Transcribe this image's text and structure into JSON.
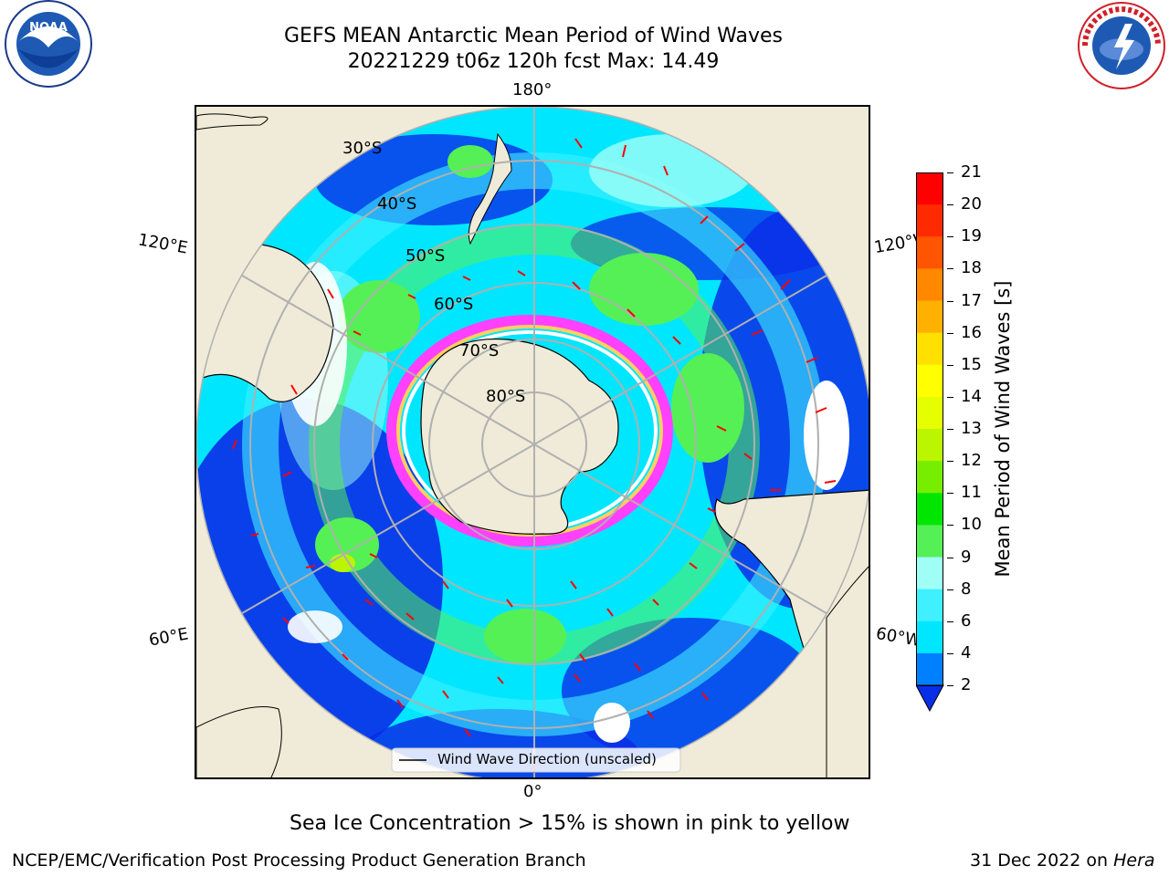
{
  "title": {
    "line1": "GEFS MEAN Antarctic Mean Period of Wind Waves",
    "line2": "20221229 t06z 120h fcst   Max: 14.49"
  },
  "logos": {
    "left": {
      "name": "noaa-logo",
      "text": "NOAA"
    },
    "right": {
      "name": "national-weather-service-logo",
      "text": "NATIONAL WEATHER SERVICE"
    }
  },
  "map": {
    "projection": "south-polar-stereographic",
    "longitude_labels": {
      "top": "180°",
      "left_upper": "120°E",
      "right_upper": "120°W",
      "left_lower": "60°E",
      "right_lower": "60°W",
      "bottom": "0°"
    },
    "latitude_labels": [
      "30°S",
      "40°S",
      "50°S",
      "60°S",
      "70°S",
      "80°S"
    ],
    "legend_label": "Wind Wave Direction (unscaled)",
    "colors": {
      "land": "#efebd8",
      "ocean_deep": "#0a2de8",
      "ocean_mid": "#00e6ff",
      "ocean_light": "#9ffff6",
      "green": "#55f055",
      "ice": "#ff40ff",
      "arrow": "#ff0000"
    }
  },
  "colorbar": {
    "label": "Mean Period of Wind Waves [s]",
    "ticks": [
      "2",
      "4",
      "6",
      "8",
      "9",
      "10",
      "11",
      "12",
      "13",
      "14",
      "15",
      "16",
      "17",
      "18",
      "19",
      "20",
      "21"
    ],
    "colors": [
      "#0a2de8",
      "#0080ff",
      "#00e6ff",
      "#40f0ff",
      "#9ffff6",
      "#55f055",
      "#00e600",
      "#77ee00",
      "#bbf500",
      "#e6ff00",
      "#ffff00",
      "#ffe000",
      "#ffb000",
      "#ff8800",
      "#ff5500",
      "#ff2a00",
      "#ff0000"
    ]
  },
  "notes": {
    "sea_ice": "Sea Ice Concentration > 15% is shown in pink to yellow"
  },
  "footer": {
    "left": "NCEP/EMC/Verification Post Processing Product Generation Branch",
    "right_prefix": "31 Dec 2022 on ",
    "right_machine": "Hera"
  }
}
